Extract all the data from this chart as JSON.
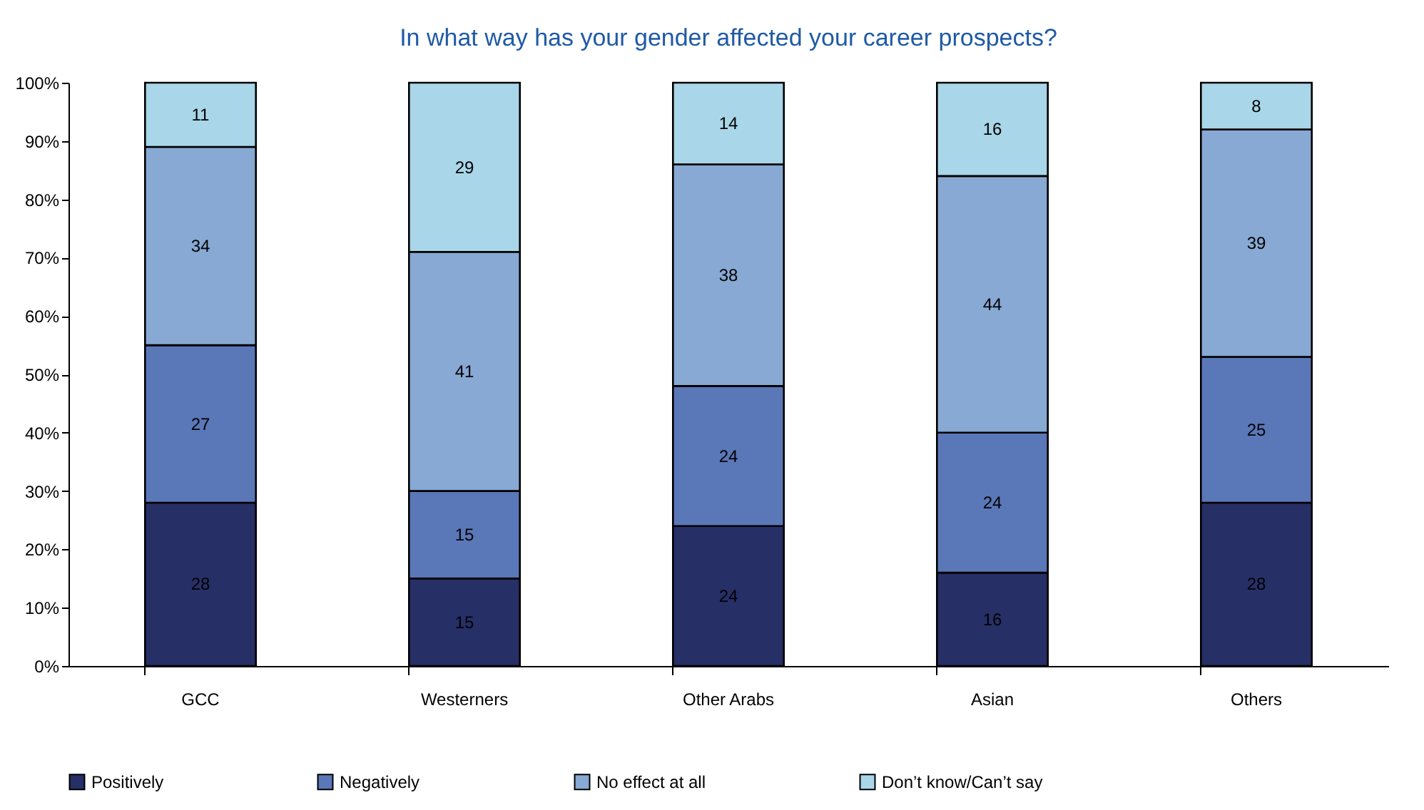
{
  "chart_data": {
    "type": "bar",
    "title": "In what way has your gender affected your career prospects?",
    "categories": [
      "GCC",
      "Westerners",
      "Other Arabs",
      "Asian",
      "Others"
    ],
    "stacked": true,
    "data_labels": true,
    "legend": "bottom",
    "grid": false,
    "ylim": [
      0,
      100
    ],
    "yticks": [
      {
        "value": 0,
        "label": "0%"
      },
      {
        "value": 10,
        "label": "10%"
      },
      {
        "value": 20,
        "label": "20%"
      },
      {
        "value": 30,
        "label": "30%"
      },
      {
        "value": 40,
        "label": "40%"
      },
      {
        "value": 50,
        "label": "50%"
      },
      {
        "value": 60,
        "label": "60%"
      },
      {
        "value": 70,
        "label": "70%"
      },
      {
        "value": 80,
        "label": "80%"
      },
      {
        "value": 90,
        "label": "90%"
      },
      {
        "value": 100,
        "label": "100%"
      }
    ],
    "series": [
      {
        "name": "Positively",
        "color": "#262f66",
        "values": [
          28,
          15,
          24,
          16,
          28
        ]
      },
      {
        "name": "Negatively",
        "color": "#5a77b8",
        "values": [
          27,
          15,
          24,
          24,
          25
        ]
      },
      {
        "name": "No effect at all",
        "color": "#87a9d3",
        "values": [
          34,
          41,
          38,
          44,
          39
        ]
      },
      {
        "name": "Don’t know/Can’t say",
        "color": "#a9d6e8",
        "values": [
          11,
          29,
          14,
          16,
          8
        ]
      }
    ]
  }
}
